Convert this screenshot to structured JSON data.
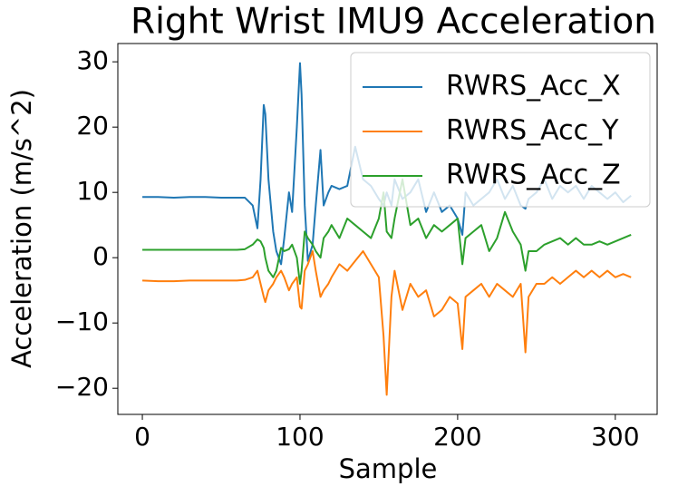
{
  "chart_data": {
    "type": "line",
    "title": "Right Wrist IMU9 Acceleration",
    "xlabel": "Sample",
    "ylabel": "Acceleration (m/s^2)",
    "x": [
      0,
      10,
      20,
      30,
      40,
      50,
      60,
      65,
      70,
      73,
      75,
      77,
      78,
      80,
      83,
      85,
      88,
      90,
      93,
      95,
      98,
      100,
      101,
      103,
      105,
      108,
      110,
      113,
      115,
      118,
      120,
      125,
      130,
      135,
      140,
      145,
      150,
      153,
      155,
      158,
      160,
      165,
      170,
      175,
      180,
      185,
      190,
      195,
      200,
      203,
      205,
      210,
      215,
      220,
      225,
      230,
      235,
      240,
      243,
      245,
      250,
      255,
      260,
      265,
      270,
      275,
      280,
      285,
      290,
      295,
      300,
      305,
      310
    ],
    "series": [
      {
        "name": "RWRS_Acc_X",
        "color": "#1f77b4",
        "values": [
          9.3,
          9.3,
          9.2,
          9.3,
          9.3,
          9.2,
          9.2,
          9.2,
          8,
          4.5,
          12,
          23.4,
          22,
          12,
          4,
          1,
          -1,
          3,
          10,
          7,
          20,
          29.8,
          25,
          8,
          -0.5,
          2,
          8,
          16.5,
          8,
          10,
          11,
          10.5,
          11,
          17,
          12,
          11,
          9,
          8,
          10,
          8,
          12,
          9,
          10,
          12,
          7,
          10,
          7,
          8,
          6,
          3.5,
          10,
          8,
          9,
          10,
          12,
          9,
          11,
          8,
          7.5,
          9,
          10,
          12,
          9,
          11,
          10,
          11,
          9,
          11,
          10,
          9,
          10,
          8.5,
          9.5
        ]
      },
      {
        "name": "RWRS_Acc_Y",
        "color": "#ff7f0e",
        "values": [
          -3.5,
          -3.6,
          -3.6,
          -3.5,
          -3.5,
          -3.5,
          -3.5,
          -3.4,
          -3,
          -2,
          -4,
          -6,
          -6.8,
          -5,
          -4,
          -3,
          -2,
          -3,
          -5,
          -4,
          -3,
          -7.5,
          -7.8,
          -2,
          -1,
          1,
          -2,
          -6,
          -5,
          -4,
          -3,
          -1,
          -2,
          -0.5,
          1,
          -1,
          -3,
          -12,
          -21,
          -6,
          -2,
          -8,
          -4,
          -6,
          -5,
          -9,
          -8,
          -6,
          -7,
          -14,
          -6,
          -5,
          -4,
          -6,
          -4,
          -5,
          -6,
          -4,
          -14.5,
          -6,
          -4,
          -4,
          -3,
          -4,
          -3,
          -2,
          -3,
          -2,
          -3,
          -2,
          -3,
          -2.5,
          -3
        ]
      },
      {
        "name": "RWRS_Acc_Z",
        "color": "#2ca02c",
        "values": [
          1.2,
          1.2,
          1.2,
          1.2,
          1.2,
          1.2,
          1.2,
          1.3,
          2,
          2.8,
          2.5,
          1.5,
          0,
          -2,
          -3,
          -2,
          1.5,
          1,
          1.3,
          2,
          0,
          -4,
          -2,
          4,
          3,
          2,
          1,
          0,
          3,
          4,
          5,
          3,
          6,
          5,
          4,
          3,
          6,
          10,
          4,
          3,
          6,
          12,
          5,
          6,
          3,
          5,
          4,
          5,
          6,
          -1,
          3,
          4,
          5,
          1,
          3,
          7,
          4,
          2,
          -2,
          1,
          1,
          2,
          2.5,
          3,
          2,
          3,
          2,
          2,
          2.5,
          2,
          2.5,
          3,
          3.5
        ]
      }
    ],
    "xlim": [
      -15.55,
      326.55
    ],
    "ylim": [
      -24,
      32.8
    ],
    "xticks": [
      0,
      100,
      200,
      300
    ],
    "yticks": [
      {
        "value": -20,
        "label": "−20"
      },
      {
        "value": -10,
        "label": "−10"
      },
      0,
      10,
      20,
      30
    ],
    "grid": false,
    "legend": "upper right"
  }
}
